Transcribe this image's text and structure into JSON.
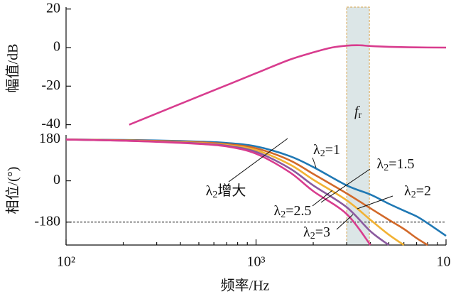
{
  "chart_data": [
    {
      "type": "line",
      "ylabel": "幅值/dB",
      "xlog": true,
      "xlim": [
        100,
        10000
      ],
      "ylim": [
        -42,
        21
      ],
      "yticks": [
        -40,
        -20,
        0,
        20
      ],
      "x": [
        215,
        300,
        500,
        700,
        1000,
        1500,
        2000,
        2500,
        3000,
        3500,
        4000,
        5000,
        7000,
        10000
      ],
      "series": [
        {
          "color": "#d83c8e",
          "values": [
            -40,
            -34.2,
            -25.3,
            -19.5,
            -13.3,
            -6.3,
            -2.5,
            0,
            1,
            1.2,
            0.8,
            0.4,
            0.1,
            0
          ]
        }
      ],
      "band": {
        "x": [
          3000,
          3950
        ],
        "label": "fr"
      }
    },
    {
      "type": "line",
      "xlabel": "频率/Hz",
      "ylabel": "相位/(°)",
      "xlog": true,
      "xlim": [
        100,
        10000
      ],
      "ylim": [
        -280,
        200
      ],
      "xticks": [
        {
          "value": 100,
          "label": "10²"
        },
        {
          "value": 1000,
          "label": "10³"
        },
        {
          "value": 10000,
          "label": "10⁴"
        }
      ],
      "xminor": [
        200,
        300,
        400,
        500,
        600,
        700,
        800,
        900,
        2000,
        3000,
        4000,
        5000,
        6000,
        7000,
        8000,
        9000
      ],
      "yticks": [
        -180,
        0,
        180
      ],
      "hline": -180,
      "annotation": "λ2增大",
      "x": [
        100,
        200,
        300,
        500,
        700,
        1000,
        1500,
        2000,
        3000,
        4000,
        5000,
        6000,
        7000,
        8000,
        10000
      ],
      "series": [
        {
          "name": "λ2=1",
          "color": "#1f78b4",
          "values": [
            180,
            178,
            176,
            171,
            165,
            150,
            108,
            60,
            -20,
            -60,
            -100,
            -130,
            -155,
            -185,
            -240
          ]
        },
        {
          "name": "λ2=1.5",
          "color": "#d2692a",
          "values": [
            180,
            177,
            174,
            168,
            160,
            142,
            90,
            30,
            -55,
            -120,
            -170,
            -210,
            -250,
            -280,
            null
          ]
        },
        {
          "name": "λ2=2",
          "color": "#f2b233",
          "values": [
            180,
            176,
            172,
            165,
            156,
            134,
            72,
            5,
            -85,
            -170,
            -235,
            -280,
            null,
            null,
            null
          ]
        },
        {
          "name": "λ2=2.5",
          "color": "#8b5a9f",
          "values": [
            180,
            175,
            171,
            163,
            153,
            126,
            55,
            -20,
            -115,
            -220,
            -280,
            null,
            null,
            null,
            null
          ]
        },
        {
          "name": "λ2=3",
          "color": "#d83c8e",
          "values": [
            180,
            175,
            170,
            161,
            150,
            118,
            38,
            -45,
            -145,
            -280,
            null,
            null,
            null,
            null,
            null
          ]
        }
      ]
    }
  ]
}
